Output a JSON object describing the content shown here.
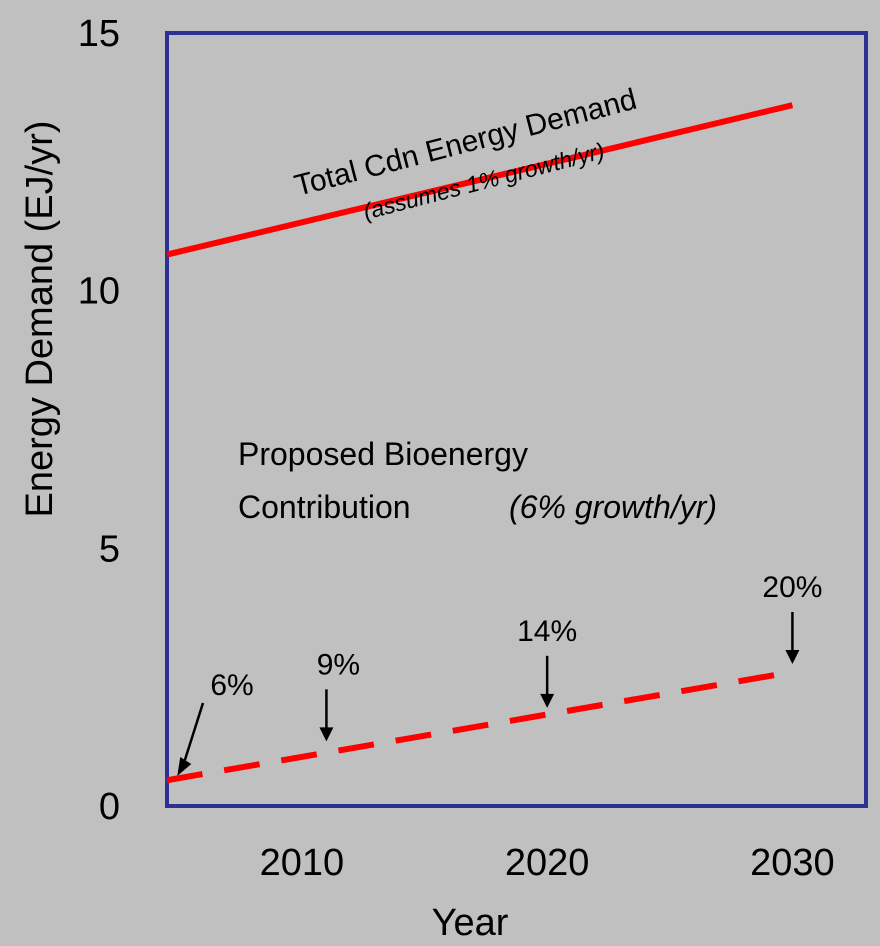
{
  "chart_data": {
    "type": "line",
    "xlabel": "Year",
    "ylabel": "Energy Demand (EJ/yr)",
    "xlim": [
      2004.5,
      2033
    ],
    "ylim": [
      0,
      15
    ],
    "xticks": [
      2010,
      2020,
      2030
    ],
    "yticks": [
      0,
      5,
      10,
      15
    ],
    "grid": false,
    "series": [
      {
        "x": [
          2004.5,
          2030
        ],
        "values": [
          10.7,
          13.6
        ],
        "style": "solid",
        "color": "#ff0000",
        "label_lines": [
          "Total Cdn Energy Demand",
          "(assumes 1% growth/yr)"
        ]
      },
      {
        "x": [
          2004.5,
          2030
        ],
        "values": [
          0.5,
          2.6
        ],
        "style": "dashed",
        "color": "#ff0000",
        "label_lines": [
          "Proposed Bioenergy",
          "Contribution",
          "(6% growth/yr)"
        ]
      }
    ],
    "annotations": [
      {
        "text": "6%",
        "x": 2005,
        "y": 0.62
      },
      {
        "text": "9%",
        "x": 2011,
        "y": 1.1
      },
      {
        "text": "14%",
        "x": 2020,
        "y": 1.75
      },
      {
        "text": "20%",
        "x": 2030,
        "y": 2.6
      }
    ],
    "colors": {
      "frame": "#2e3192",
      "background": "#c0c0c0",
      "line": "#ff0000"
    }
  }
}
